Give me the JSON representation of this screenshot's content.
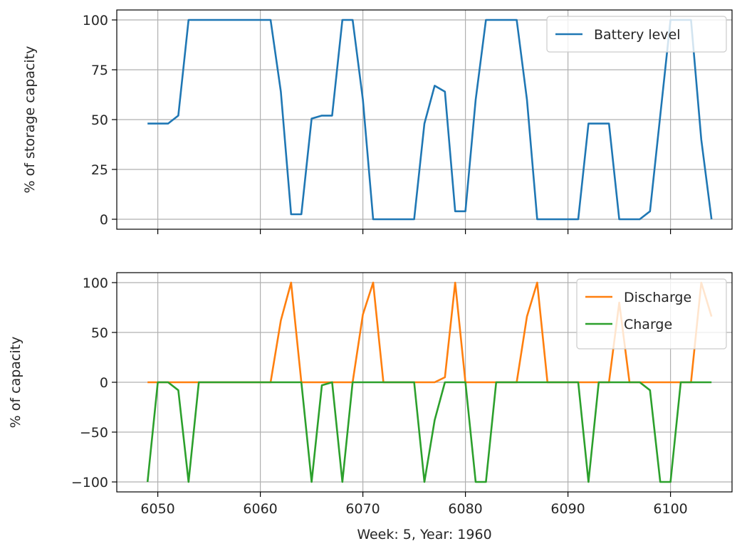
{
  "chart_data": [
    {
      "type": "line",
      "ylabel": "% of storage capacity",
      "xlabel": "",
      "xlim": [
        6046,
        6106
      ],
      "ylim": [
        -5,
        105
      ],
      "xticks": [
        6050,
        6060,
        6070,
        6080,
        6090,
        6100
      ],
      "show_xtick_labels": false,
      "yticks": [
        0,
        25,
        50,
        75,
        100
      ],
      "ytick_labels": [
        "0",
        "25",
        "50",
        "75",
        "100"
      ],
      "grid": true,
      "legend_position": "top-right",
      "x": [
        6049,
        6050,
        6051,
        6052,
        6053,
        6054,
        6055,
        6056,
        6057,
        6058,
        6059,
        6060,
        6061,
        6062,
        6063,
        6064,
        6065,
        6066,
        6067,
        6068,
        6069,
        6070,
        6071,
        6072,
        6073,
        6074,
        6075,
        6076,
        6077,
        6078,
        6079,
        6080,
        6081,
        6082,
        6083,
        6084,
        6085,
        6086,
        6087,
        6088,
        6089,
        6090,
        6091,
        6092,
        6093,
        6094,
        6095,
        6096,
        6097,
        6098,
        6099,
        6100,
        6101,
        6102,
        6103,
        6104
      ],
      "series": [
        {
          "name": "Battery level",
          "color": "#1f77b4",
          "values": [
            48,
            48,
            48,
            52,
            100,
            100,
            100,
            100,
            100,
            100,
            100,
            100,
            100,
            64,
            2.5,
            2.5,
            50.5,
            52,
            52,
            100,
            100,
            60,
            0,
            0,
            0,
            0,
            0,
            48,
            67,
            64,
            4,
            4,
            60,
            100,
            100,
            100,
            100,
            60,
            0,
            0,
            0,
            0,
            0,
            48,
            48,
            48,
            0,
            0,
            0,
            4,
            52,
            100,
            100,
            100,
            40,
            0
          ]
        }
      ]
    },
    {
      "type": "line",
      "ylabel": "% of capacity",
      "xlabel": "Week: 5, Year: 1960",
      "xlim": [
        6046,
        6106
      ],
      "ylim": [
        -110,
        110
      ],
      "xticks": [
        6050,
        6060,
        6070,
        6080,
        6090,
        6100
      ],
      "xtick_labels": [
        "6050",
        "6060",
        "6070",
        "6080",
        "6090",
        "6100"
      ],
      "yticks": [
        -100,
        -50,
        0,
        50,
        100
      ],
      "ytick_labels": [
        "−100",
        "−50",
        "0",
        "50",
        "100"
      ],
      "grid": true,
      "legend_position": "top-right",
      "x": [
        6049,
        6050,
        6051,
        6052,
        6053,
        6054,
        6055,
        6056,
        6057,
        6058,
        6059,
        6060,
        6061,
        6062,
        6063,
        6064,
        6065,
        6066,
        6067,
        6068,
        6069,
        6070,
        6071,
        6072,
        6073,
        6074,
        6075,
        6076,
        6077,
        6078,
        6079,
        6080,
        6081,
        6082,
        6083,
        6084,
        6085,
        6086,
        6087,
        6088,
        6089,
        6090,
        6091,
        6092,
        6093,
        6094,
        6095,
        6096,
        6097,
        6098,
        6099,
        6100,
        6101,
        6102,
        6103,
        6104
      ],
      "series": [
        {
          "name": "Discharge",
          "color": "#ff7f0e",
          "values": [
            0,
            0,
            0,
            0,
            0,
            0,
            0,
            0,
            0,
            0,
            0,
            0,
            0,
            62,
            100,
            0,
            0,
            0,
            0,
            0,
            0,
            68,
            100,
            0,
            0,
            0,
            0,
            0,
            0,
            5,
            100,
            0,
            0,
            0,
            0,
            0,
            0,
            66,
            100,
            0,
            0,
            0,
            0,
            0,
            0,
            0,
            80,
            0,
            0,
            0,
            0,
            0,
            0,
            0,
            100,
            66
          ]
        },
        {
          "name": "Charge",
          "color": "#2ca02c",
          "values": [
            -100,
            0,
            0,
            -8,
            -100,
            0,
            0,
            0,
            0,
            0,
            0,
            0,
            0,
            0,
            0,
            0,
            -100,
            -3,
            0,
            -100,
            0,
            0,
            0,
            0,
            0,
            0,
            0,
            -100,
            -38,
            0,
            0,
            0,
            -100,
            -100,
            0,
            0,
            0,
            0,
            0,
            0,
            0,
            0,
            0,
            -100,
            0,
            0,
            0,
            0,
            0,
            -8,
            -100,
            -100,
            0,
            0,
            0,
            0
          ]
        }
      ]
    }
  ]
}
